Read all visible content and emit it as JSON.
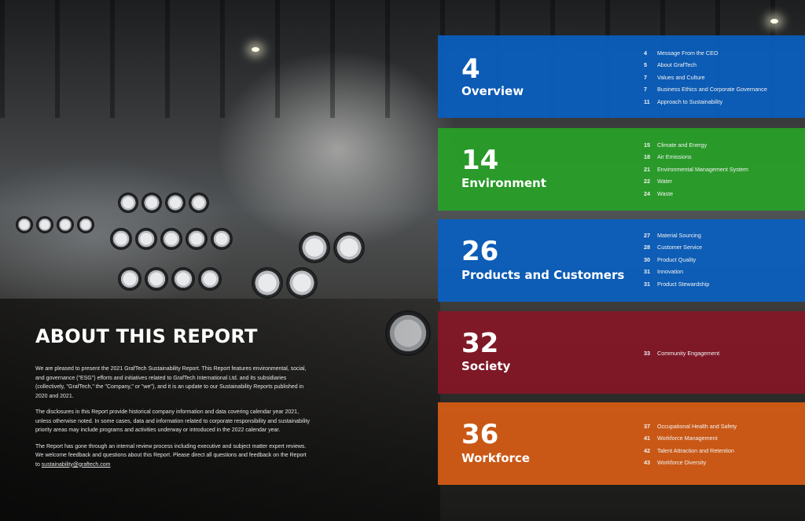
{
  "about": {
    "title": "ABOUT THIS REPORT",
    "paragraphs": [
      "We are pleased to present the 2021 GrafTech Sustainability Report. This Report features environmental, social, and governance (\"ESG\") efforts and initiatives related to GrafTech International Ltd. and its subsidiaries (collectively, \"GrafTech,\" the \"Company,\" or \"we\"), and it is an update to our Sustainability Reports published in 2020 and 2021.",
      "The disclosures in this Report provide historical company information and data covering calendar year 2021, unless otherwise noted. In some cases, data and information related to corporate responsibility and sustainability priority areas may include programs and activities underway or introduced in the 2022 calendar year.",
      "The Report has gone through an internal review process including executive and subject matter expert reviews. We welcome feedback and questions about this Report. Please direct all questions and feedback on the Report to"
    ],
    "email": "sustainability@graftech.com"
  },
  "sections": [
    {
      "number": "4",
      "name": "Overview",
      "color": "#0a5fbe",
      "items": [
        {
          "page": "4",
          "label": "Message From the CEO"
        },
        {
          "page": "5",
          "label": "About GrafTech"
        },
        {
          "page": "7",
          "label": "Values and Culture"
        },
        {
          "page": "7",
          "label": "Business Ethics and Corporate Governance"
        },
        {
          "page": "11",
          "label": "Approach to Sustainability"
        }
      ]
    },
    {
      "number": "14",
      "name": "Environment",
      "color": "#28a028",
      "items": [
        {
          "page": "15",
          "label": "Climate and Energy"
        },
        {
          "page": "18",
          "label": "Air Emissions"
        },
        {
          "page": "21",
          "label": "Environmental Management System"
        },
        {
          "page": "22",
          "label": "Water"
        },
        {
          "page": "24",
          "label": "Waste"
        }
      ]
    },
    {
      "number": "26",
      "name": "Products and Customers",
      "color": "#0a5fbe",
      "items": [
        {
          "page": "27",
          "label": "Material Sourcing"
        },
        {
          "page": "28",
          "label": "Customer Service"
        },
        {
          "page": "30",
          "label": "Product Quality"
        },
        {
          "page": "31",
          "label": "Innovation"
        },
        {
          "page": "31",
          "label": "Product Stewardship"
        }
      ]
    },
    {
      "number": "32",
      "name": "Society",
      "color": "#8c1426",
      "items": [
        {
          "page": "33",
          "label": "Community Engagement"
        }
      ]
    },
    {
      "number": "36",
      "name": "Workforce",
      "color": "#d65c16",
      "items": [
        {
          "page": "37",
          "label": "Occupational Health and Safety"
        },
        {
          "page": "41",
          "label": "Workforce Management"
        },
        {
          "page": "42",
          "label": "Talent Attraction and Retention"
        },
        {
          "page": "43",
          "label": "Workforce Diversity"
        }
      ]
    }
  ]
}
